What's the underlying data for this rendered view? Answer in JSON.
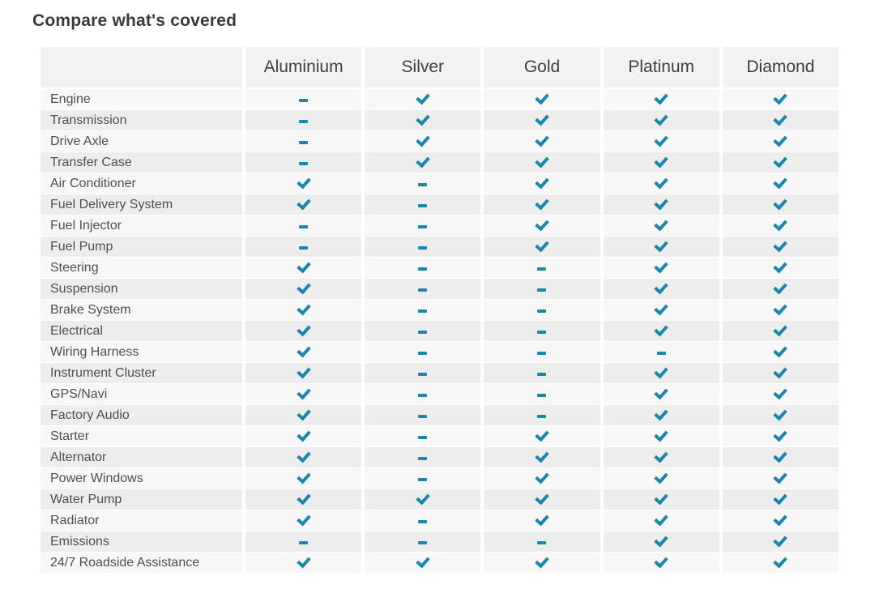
{
  "title": "Compare what's covered",
  "colors": {
    "accent_check": "#1b86ab",
    "header_bg": "#f2f2f2",
    "row_odd_bg": "#f7f7f8",
    "row_even_bg": "#ededee",
    "title_text": "#3a3a3a",
    "label_text": "#4e4f52"
  },
  "icons": {
    "covered": "check-icon",
    "not_covered": "dash-icon"
  },
  "table": {
    "columns": [
      "Aluminium",
      "Silver",
      "Gold",
      "Platinum",
      "Diamond"
    ],
    "rows": [
      {
        "label": "Engine",
        "covered": [
          false,
          true,
          true,
          true,
          true
        ]
      },
      {
        "label": "Transmission",
        "covered": [
          false,
          true,
          true,
          true,
          true
        ]
      },
      {
        "label": "Drive Axle",
        "covered": [
          false,
          true,
          true,
          true,
          true
        ]
      },
      {
        "label": "Transfer Case",
        "covered": [
          false,
          true,
          true,
          true,
          true
        ]
      },
      {
        "label": "Air Conditioner",
        "covered": [
          true,
          false,
          true,
          true,
          true
        ]
      },
      {
        "label": "Fuel Delivery System",
        "covered": [
          true,
          false,
          true,
          true,
          true
        ]
      },
      {
        "label": "Fuel Injector",
        "covered": [
          false,
          false,
          true,
          true,
          true
        ]
      },
      {
        "label": "Fuel Pump",
        "covered": [
          false,
          false,
          true,
          true,
          true
        ]
      },
      {
        "label": "Steering",
        "covered": [
          true,
          false,
          false,
          true,
          true
        ]
      },
      {
        "label": "Suspension",
        "covered": [
          true,
          false,
          false,
          true,
          true
        ]
      },
      {
        "label": "Brake System",
        "covered": [
          true,
          false,
          false,
          true,
          true
        ]
      },
      {
        "label": "Electrical",
        "covered": [
          true,
          false,
          false,
          true,
          true
        ]
      },
      {
        "label": "Wiring Harness",
        "covered": [
          true,
          false,
          false,
          false,
          true
        ]
      },
      {
        "label": "Instrument Cluster",
        "covered": [
          true,
          false,
          false,
          true,
          true
        ]
      },
      {
        "label": "GPS/Navi",
        "covered": [
          true,
          false,
          false,
          true,
          true
        ]
      },
      {
        "label": "Factory Audio",
        "covered": [
          true,
          false,
          false,
          true,
          true
        ]
      },
      {
        "label": "Starter",
        "covered": [
          true,
          false,
          true,
          true,
          true
        ]
      },
      {
        "label": "Alternator",
        "covered": [
          true,
          false,
          true,
          true,
          true
        ]
      },
      {
        "label": "Power Windows",
        "covered": [
          true,
          false,
          true,
          true,
          true
        ]
      },
      {
        "label": "Water Pump",
        "covered": [
          true,
          true,
          true,
          true,
          true
        ]
      },
      {
        "label": "Radiator",
        "covered": [
          true,
          false,
          true,
          true,
          true
        ]
      },
      {
        "label": "Emissions",
        "covered": [
          false,
          false,
          false,
          true,
          true
        ]
      },
      {
        "label": "24/7 Roadside Assistance",
        "covered": [
          true,
          true,
          true,
          true,
          true
        ]
      }
    ]
  }
}
